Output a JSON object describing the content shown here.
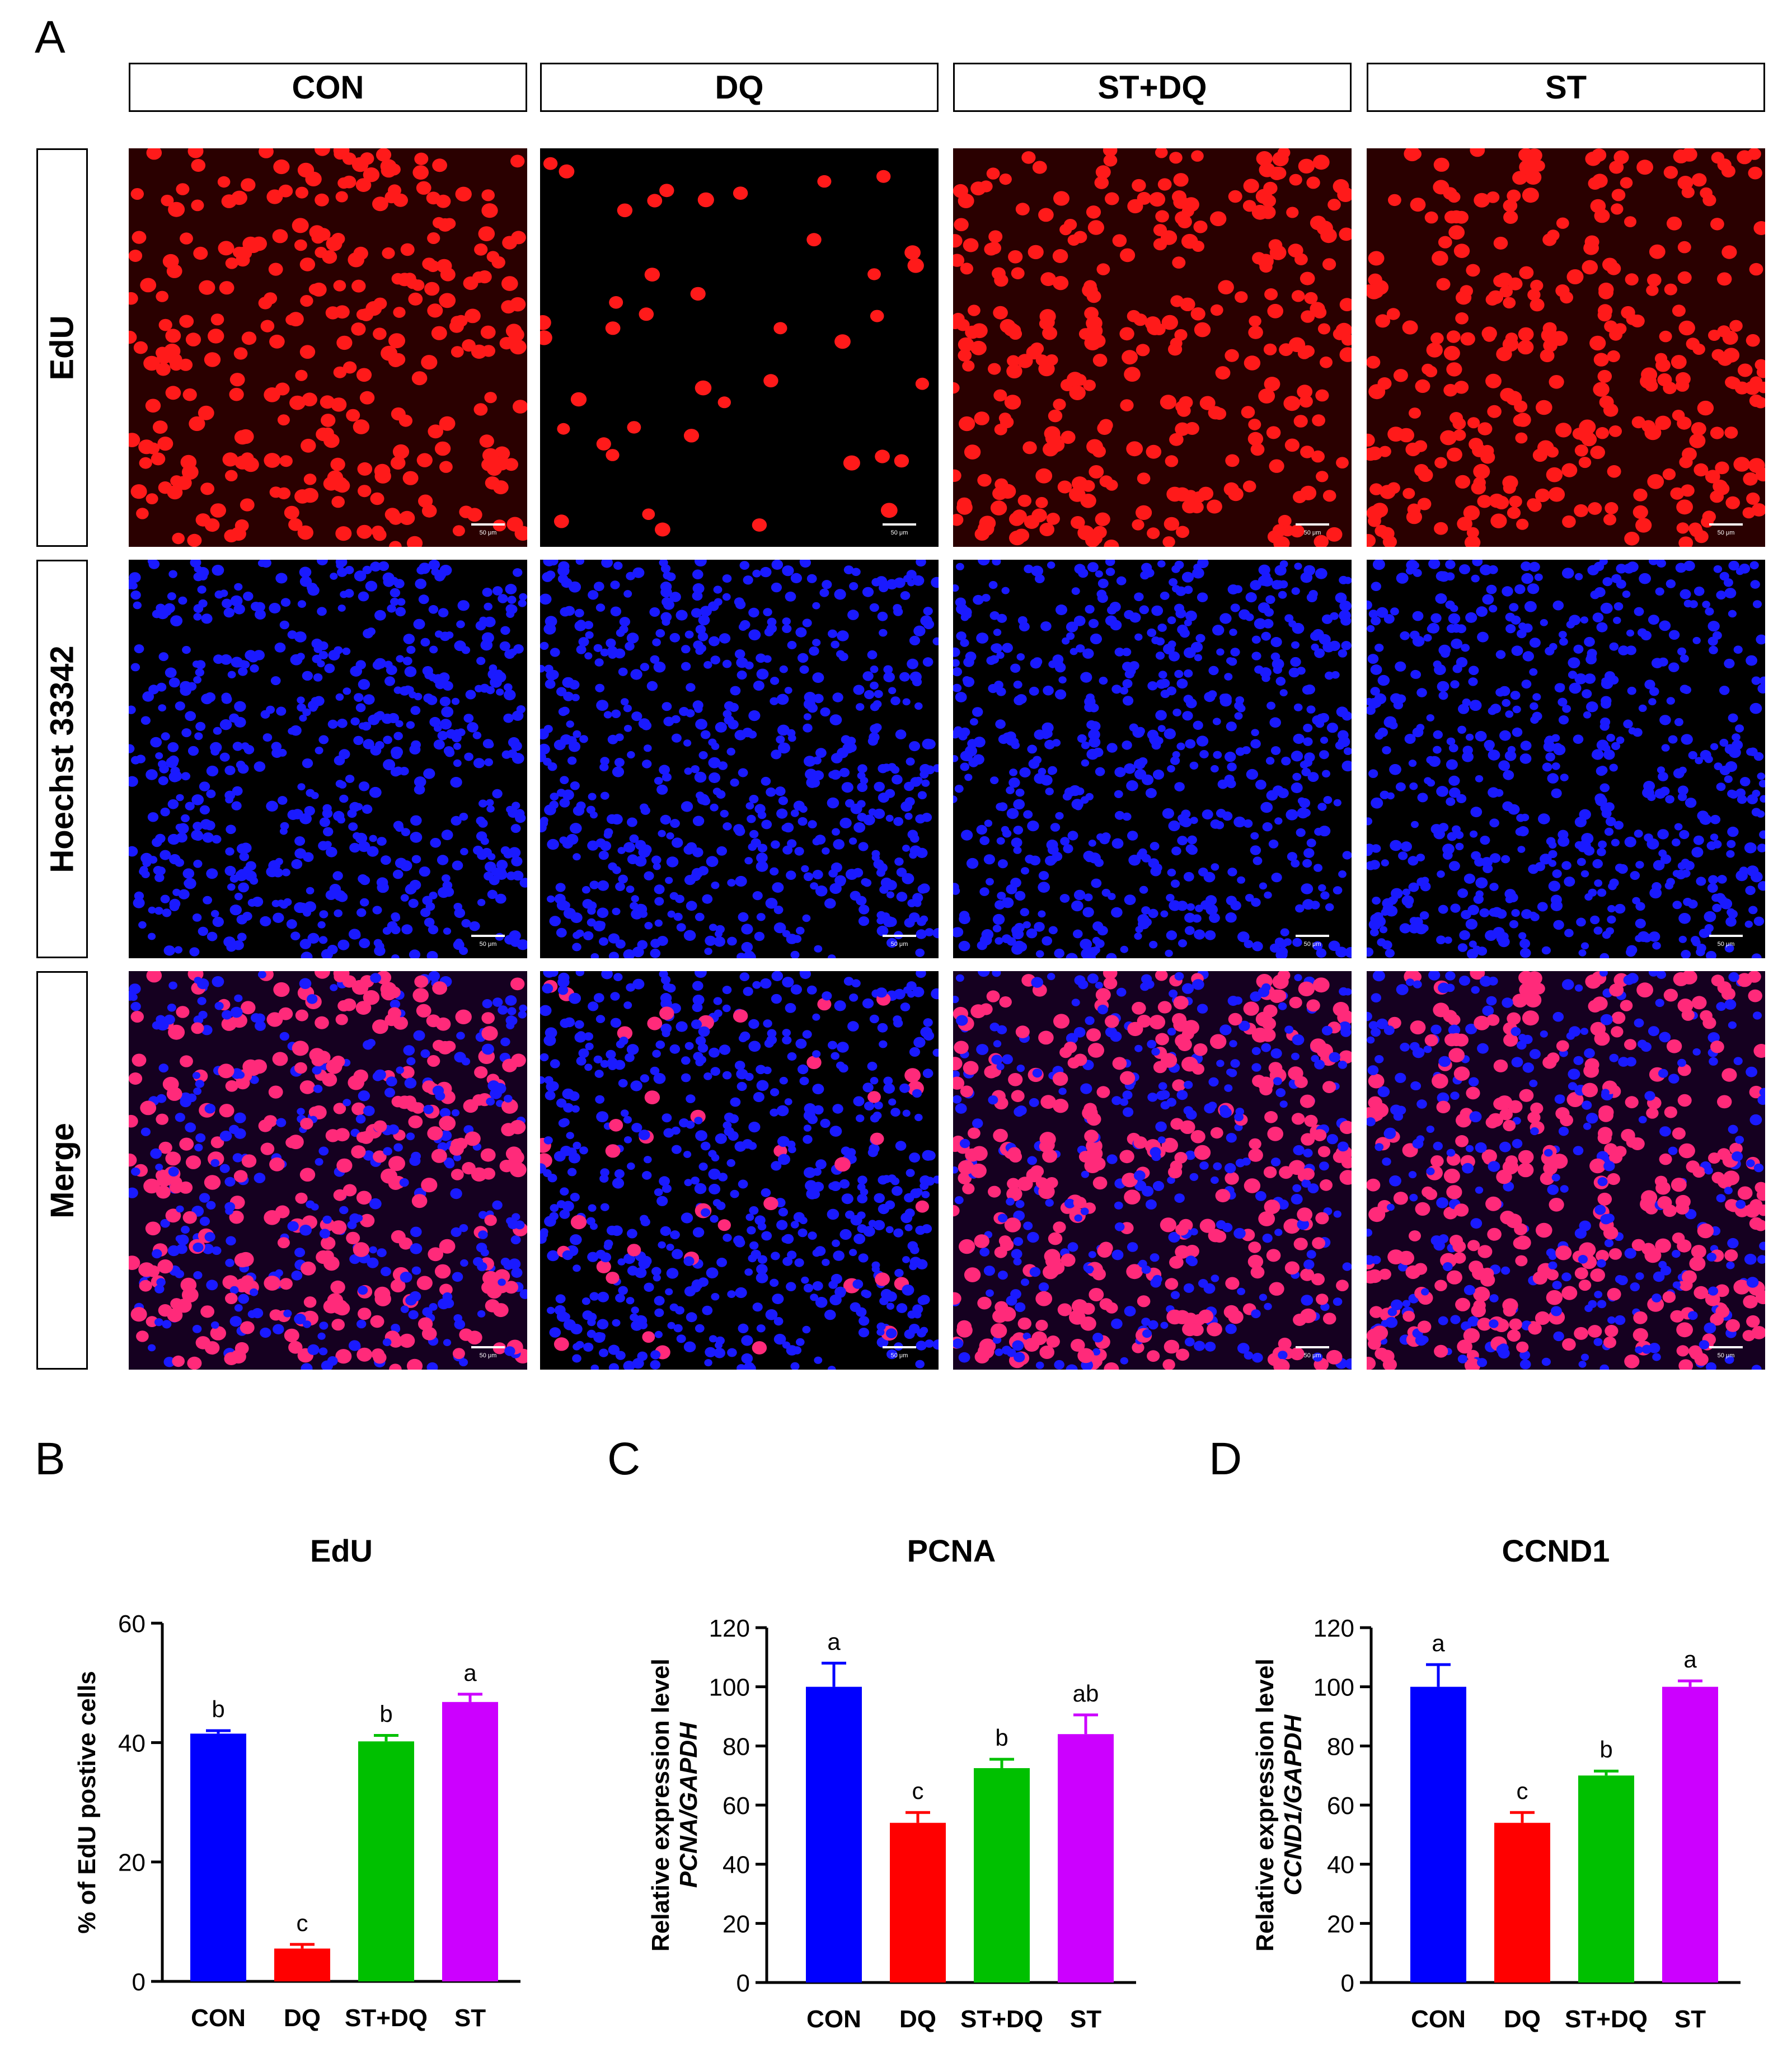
{
  "figure": {
    "panel_letters": {
      "A": "A",
      "B": "B",
      "C": "C",
      "D": "D"
    },
    "columns": [
      "CON",
      "DQ",
      "ST+DQ",
      "ST"
    ],
    "rows": [
      "EdU",
      "Hoechst 33342",
      "Merge"
    ],
    "scale_bar_label": "50 μm",
    "colors": {
      "edu_red": "#ff1a1a",
      "hoechst_blue": "#1a1aff",
      "merge_pink": "#ff2a7a"
    }
  },
  "chart_data": [
    {
      "type": "bar",
      "panel": "B",
      "title": "EdU",
      "ylabel": "% of EdU postive cells",
      "ylabel_lines": [
        "% of EdU postive cells"
      ],
      "categories": [
        "CON",
        "DQ",
        "ST+DQ",
        "ST"
      ],
      "values": [
        41.5,
        5.5,
        40.2,
        46.8
      ],
      "errors": [
        0.5,
        0.7,
        1.0,
        1.3
      ],
      "letters": [
        "b",
        "c",
        "b",
        "a"
      ],
      "colors": [
        "#0000ff",
        "#ff0000",
        "#00c000",
        "#cc00ff"
      ],
      "ylim": [
        0,
        60
      ],
      "yticks": [
        0,
        20,
        40,
        60
      ]
    },
    {
      "type": "bar",
      "panel": "C",
      "title": "PCNA",
      "ylabel_lines": [
        "Relative expression level",
        "PCNA/GAPDH"
      ],
      "categories": [
        "CON",
        "DQ",
        "ST+DQ",
        "ST"
      ],
      "values": [
        100,
        54,
        72.5,
        84
      ],
      "errors": [
        8,
        3.5,
        3,
        6.5
      ],
      "letters": [
        "a",
        "c",
        "b",
        "ab"
      ],
      "colors": [
        "#0000ff",
        "#ff0000",
        "#00c000",
        "#cc00ff"
      ],
      "ylim": [
        0,
        120
      ],
      "yticks": [
        0,
        20,
        40,
        60,
        80,
        100,
        120
      ]
    },
    {
      "type": "bar",
      "panel": "D",
      "title": "CCND1",
      "ylabel_lines": [
        "Relative expression level",
        "CCND1/GAPDH"
      ],
      "categories": [
        "CON",
        "DQ",
        "ST+DQ",
        "ST"
      ],
      "values": [
        100,
        54,
        70,
        100
      ],
      "errors": [
        7.5,
        3.5,
        1.5,
        2
      ],
      "letters": [
        "a",
        "c",
        "b",
        "a"
      ],
      "colors": [
        "#0000ff",
        "#ff0000",
        "#00c000",
        "#cc00ff"
      ],
      "ylim": [
        0,
        120
      ],
      "yticks": [
        0,
        20,
        40,
        60,
        80,
        100,
        120
      ]
    }
  ]
}
